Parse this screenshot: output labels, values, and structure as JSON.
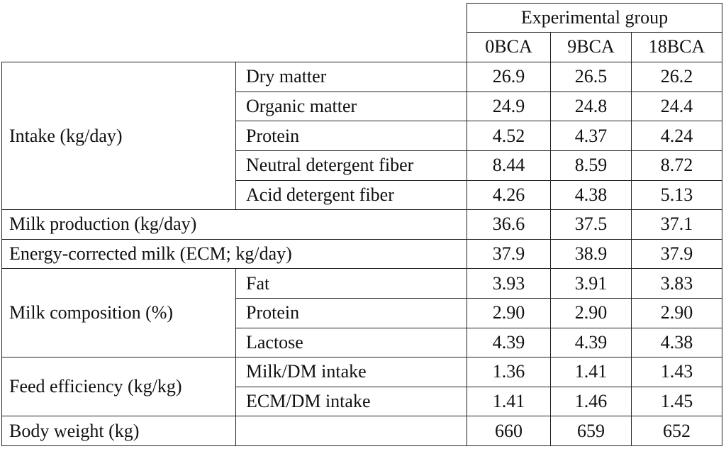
{
  "header": {
    "group_label": "Experimental group",
    "columns": [
      "0BCA",
      "9BCA",
      "18BCA"
    ]
  },
  "intake": {
    "label": "Intake (kg/day)",
    "rows": [
      {
        "name": "Dry matter",
        "values": [
          "26.9",
          "26.5",
          "26.2"
        ]
      },
      {
        "name": "Organic matter",
        "values": [
          "24.9",
          "24.8",
          "24.4"
        ]
      },
      {
        "name": "Protein",
        "values": [
          "4.52",
          "4.37",
          "4.24"
        ]
      },
      {
        "name": "Neutral detergent fiber",
        "values": [
          "8.44",
          "8.59",
          "8.72"
        ]
      },
      {
        "name": "Acid detergent fiber",
        "values": [
          "4.26",
          "4.38",
          "5.13"
        ]
      }
    ]
  },
  "milk_production": {
    "label": "Milk production (kg/day)",
    "values": [
      "36.6",
      "37.5",
      "37.1"
    ]
  },
  "ecm": {
    "label": "Energy-corrected milk (ECM; kg/day)",
    "values": [
      "37.9",
      "38.9",
      "37.9"
    ]
  },
  "milk_composition": {
    "label": "Milk composition (%)",
    "rows": [
      {
        "name": "Fat",
        "values": [
          "3.93",
          "3.91",
          "3.83"
        ]
      },
      {
        "name": "Protein",
        "values": [
          "2.90",
          "2.90",
          "2.90"
        ]
      },
      {
        "name": "Lactose",
        "values": [
          "4.39",
          "4.39",
          "4.38"
        ]
      }
    ]
  },
  "feed_efficiency": {
    "label": "Feed efficiency (kg/kg)",
    "rows": [
      {
        "name": "Milk/DM intake",
        "values": [
          "1.36",
          "1.41",
          "1.43"
        ]
      },
      {
        "name": "ECM/DM intake",
        "values": [
          "1.41",
          "1.46",
          "1.45"
        ]
      }
    ]
  },
  "body_weight": {
    "label": "Body weight (kg)",
    "values": [
      "660",
      "659",
      "652"
    ]
  }
}
